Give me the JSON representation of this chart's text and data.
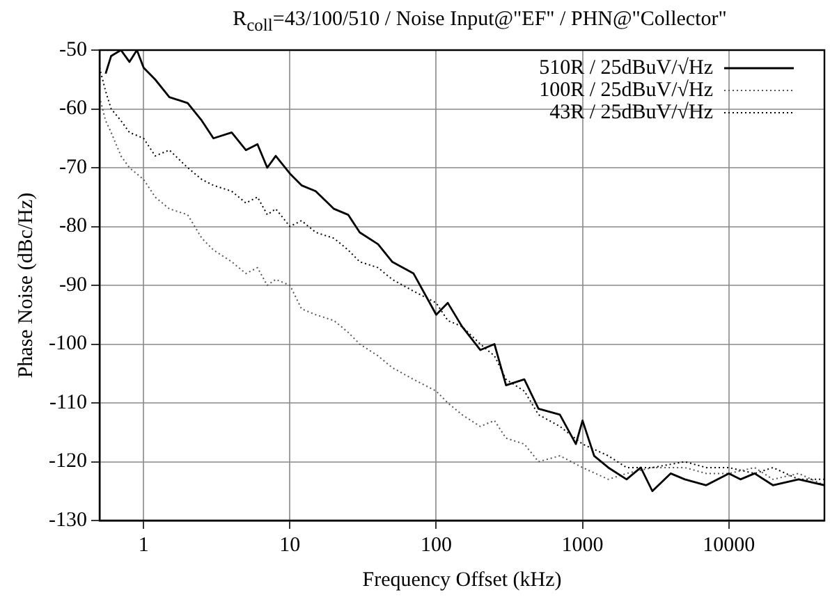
{
  "chart_data": {
    "type": "line",
    "title": "R$_{coll}$=43/100/510 / Noise Input@\"EF\" / PHN@\"Collector\"",
    "xlabel": "Frequency Offset (kHz)",
    "ylabel": "Phase Noise (dBc/Hz)",
    "log": "x",
    "grid": true,
    "legend": "top right",
    "marker": "none",
    "xlim": [
      0.5,
      45000
    ],
    "xticks": [
      1,
      10,
      100,
      1000,
      10000
    ],
    "ylim": [
      -130,
      -50
    ],
    "yticks": [
      -130,
      -120,
      -110,
      -100,
      -90,
      -80,
      -70,
      -60,
      -50
    ],
    "series": [
      {
        "name": "510R / 25dBuV/√Hz",
        "color": "#000000",
        "line_style": "solid",
        "x": [
          0.55,
          0.6,
          0.7,
          0.8,
          0.9,
          1,
          1.2,
          1.5,
          2,
          2.5,
          3,
          4,
          5,
          6,
          7,
          8,
          10,
          12,
          15,
          20,
          25,
          30,
          40,
          50,
          70,
          100,
          120,
          150,
          200,
          250,
          300,
          400,
          500,
          700,
          900,
          1000,
          1200,
          1500,
          2000,
          2500,
          3000,
          4000,
          5000,
          7000,
          10000,
          12000,
          15000,
          20000,
          30000,
          45000
        ],
        "values": [
          -54,
          -51,
          -50,
          -52,
          -50,
          -53,
          -55,
          -58,
          -59,
          -62,
          -65,
          -64,
          -67,
          -66,
          -70,
          -68,
          -71,
          -73,
          -74,
          -77,
          -78,
          -81,
          -83,
          -86,
          -88,
          -95,
          -93,
          -97,
          -101,
          -100,
          -107,
          -106,
          -111,
          -112,
          -117,
          -113,
          -119,
          -121,
          -123,
          -121,
          -125,
          -122,
          -123,
          -124,
          -122,
          -123,
          -122,
          -124,
          -123,
          -124
        ]
      },
      {
        "name": "100R / 25dBuV/√Hz",
        "color": "#555555",
        "line_style": "dotted",
        "x": [
          0.5,
          0.55,
          0.6,
          0.7,
          0.8,
          1,
          1.2,
          1.5,
          2,
          2.5,
          3,
          4,
          5,
          6,
          7,
          8,
          10,
          12,
          15,
          20,
          25,
          30,
          40,
          50,
          70,
          100,
          120,
          150,
          200,
          250,
          300,
          400,
          500,
          700,
          1000,
          1500,
          2000,
          3000,
          5000,
          7000,
          10000,
          15000,
          20000,
          30000,
          45000
        ],
        "values": [
          -58,
          -62,
          -64,
          -68,
          -70,
          -72,
          -75,
          -77,
          -78,
          -82,
          -84,
          -86,
          -88,
          -87,
          -90,
          -89,
          -90,
          -94,
          -95,
          -96,
          -98,
          -100,
          -102,
          -104,
          -106,
          -108,
          -110,
          -112,
          -114,
          -113,
          -116,
          -117,
          -120,
          -119,
          -121,
          -123,
          -122,
          -121,
          -121,
          -122,
          -122,
          -121,
          -123,
          -122,
          -124
        ]
      },
      {
        "name": "43R / 25dBuV/√Hz",
        "color": "#000000",
        "line_style": "dotted",
        "x": [
          0.5,
          0.55,
          0.6,
          0.7,
          0.8,
          1,
          1.2,
          1.5,
          2,
          2.5,
          3,
          4,
          5,
          6,
          7,
          8,
          10,
          12,
          15,
          20,
          25,
          30,
          40,
          50,
          70,
          100,
          120,
          150,
          200,
          250,
          300,
          400,
          500,
          700,
          1000,
          1500,
          2000,
          3000,
          5000,
          7000,
          10000,
          15000,
          20000,
          30000,
          45000
        ],
        "values": [
          -53,
          -57,
          -60,
          -62,
          -64,
          -65,
          -68,
          -67,
          -70,
          -72,
          -73,
          -74,
          -76,
          -75,
          -78,
          -77,
          -80,
          -79,
          -81,
          -82,
          -84,
          -86,
          -87,
          -89,
          -91,
          -93,
          -96,
          -97,
          -100,
          -102,
          -106,
          -108,
          -112,
          -114,
          -117,
          -119,
          -121,
          -121,
          -120,
          -121,
          -121,
          -122,
          -121,
          -123,
          -123
        ]
      }
    ]
  }
}
